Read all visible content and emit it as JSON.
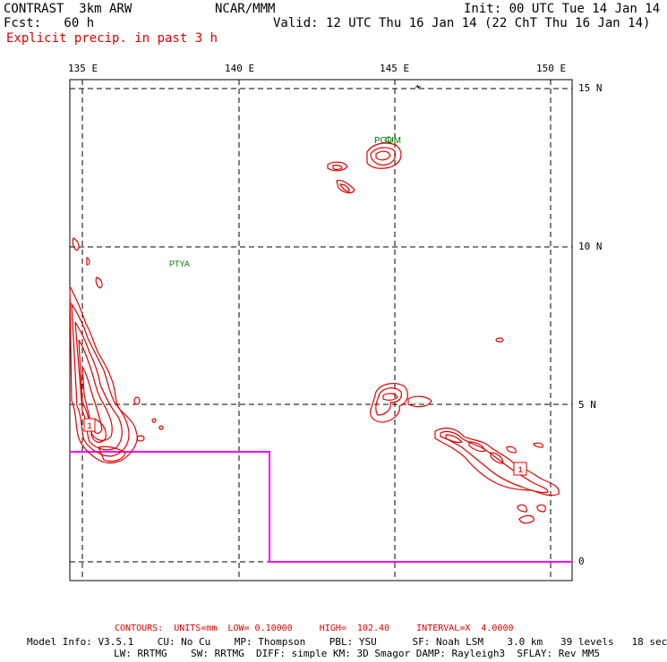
{
  "header": {
    "model": "CONTRAST  3km ARW",
    "org": "NCAR/MMM",
    "init": "Init: 00 UTC Tue 14 Jan 14",
    "fcst": "Fcst:   60 h",
    "valid": "Valid: 12 UTC Thu 16 Jan 14 (22 ChT Thu 16 Jan 14)",
    "field": "Explicit precip. in past 3 h"
  },
  "axes": {
    "lon_labels": [
      "135 E",
      "140 E",
      "145 E",
      "150 E"
    ],
    "lat_labels": [
      "15 N",
      "10 N",
      "5 N",
      "0"
    ]
  },
  "stations": [
    "PGUM",
    "PTYA"
  ],
  "contour_labels": [
    "1",
    "1"
  ],
  "footer": {
    "contours": "CONTOURS:  UNITS=mm  LOW= 0.10000     HIGH=  102.40     INTERVAL=X  4.0000",
    "model_info_1": "Model Info: V3.5.1    CU: No Cu    MP: Thompson    PBL: YSU      SF: Noah LSM    3.0 km   39 levels   18 sec",
    "model_info_2": "LW: RRTMG    SW: RRTMG  DIFF: simple KM: 3D Smagor DAMP: Rayleigh3  SFLAY: Rev MM5"
  },
  "colors": {
    "precip": "#e00000",
    "boundary": "#ff00ff",
    "station": "#007000",
    "grid": "#000000"
  }
}
